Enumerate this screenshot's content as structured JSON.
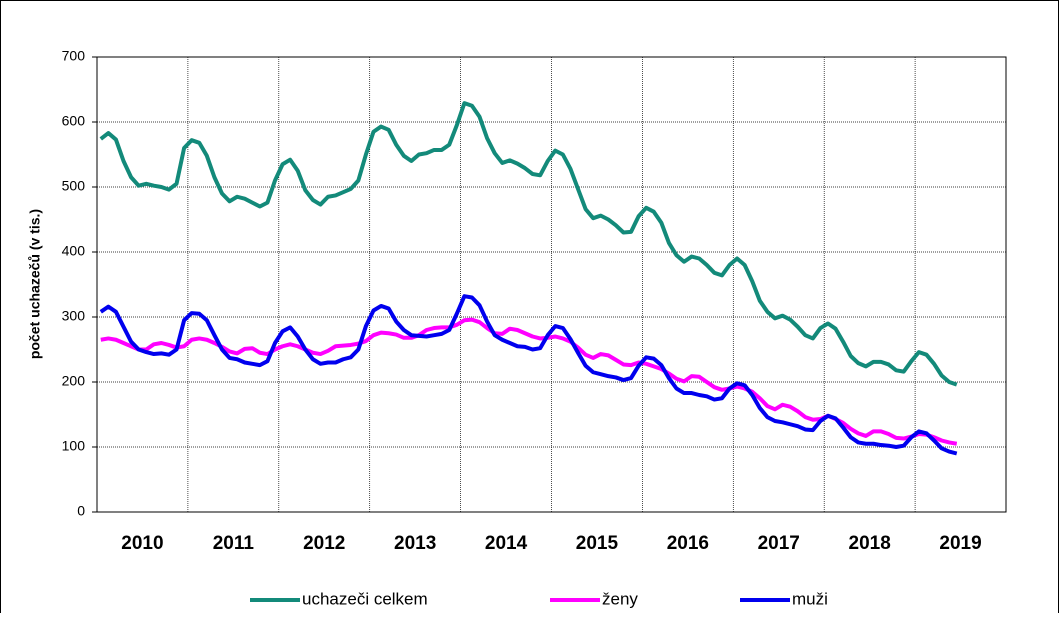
{
  "chart_data": {
    "type": "line",
    "ylabel": "počet uchazečů (v tis.)",
    "categories": [
      null,
      null,
      null,
      null,
      null,
      null,
      "2010",
      null,
      null,
      null,
      null,
      null,
      null,
      null,
      null,
      null,
      null,
      null,
      "2011",
      null,
      null,
      null,
      null,
      null,
      null,
      null,
      null,
      null,
      null,
      null,
      "2012",
      null,
      null,
      null,
      null,
      null,
      null,
      null,
      null,
      null,
      null,
      null,
      "2013",
      null,
      null,
      null,
      null,
      null,
      null,
      null,
      null,
      null,
      null,
      null,
      "2014",
      null,
      null,
      null,
      null,
      null,
      null,
      null,
      null,
      null,
      null,
      null,
      "2015",
      null,
      null,
      null,
      null,
      null,
      null,
      null,
      null,
      null,
      null,
      null,
      "2016",
      null,
      null,
      null,
      null,
      null,
      null,
      null,
      null,
      null,
      null,
      null,
      "2017",
      null,
      null,
      null,
      null,
      null,
      null,
      null,
      null,
      null,
      null,
      null,
      "2018",
      null,
      null,
      null,
      null,
      null,
      null,
      null,
      null,
      null,
      null,
      null,
      "2019",
      null,
      null,
      null,
      null,
      null
    ],
    "series": [
      {
        "name": "uchazeči celkem",
        "color": "#138a7a",
        "values": [
          574,
          583,
          573,
          540,
          515,
          502,
          505,
          502,
          500,
          496,
          505,
          560,
          572,
          568,
          548,
          515,
          490,
          478,
          485,
          482,
          476,
          470,
          476,
          510,
          535,
          542,
          525,
          495,
          480,
          473,
          485,
          487,
          492,
          497,
          510,
          550,
          585,
          593,
          588,
          565,
          548,
          540,
          550,
          552,
          557,
          557,
          565,
          595,
          629,
          625,
          608,
          575,
          552,
          537,
          541,
          536,
          529,
          520,
          518,
          540,
          556,
          550,
          528,
          497,
          466,
          452,
          456,
          450,
          441,
          430,
          431,
          455,
          468,
          462,
          445,
          414,
          395,
          385,
          393,
          390,
          380,
          368,
          364,
          380,
          390,
          380,
          355,
          325,
          308,
          298,
          302,
          296,
          285,
          272,
          267,
          283,
          290,
          282,
          262,
          240,
          229,
          224,
          231,
          231,
          227,
          218,
          216,
          232,
          246,
          242,
          228,
          210,
          200,
          196,
          null,
          null,
          null,
          null,
          null,
          null
        ]
      },
      {
        "name": "ženy",
        "color": "#ff00ff",
        "values": [
          265,
          267,
          265,
          260,
          255,
          250,
          250,
          258,
          260,
          257,
          253,
          255,
          265,
          267,
          265,
          260,
          254,
          247,
          244,
          251,
          252,
          245,
          243,
          250,
          255,
          258,
          255,
          250,
          245,
          243,
          248,
          255,
          256,
          257,
          259,
          263,
          272,
          276,
          275,
          273,
          268,
          268,
          272,
          280,
          283,
          284,
          284,
          288,
          295,
          296,
          292,
          283,
          275,
          274,
          282,
          280,
          275,
          270,
          267,
          268,
          270,
          267,
          262,
          253,
          242,
          237,
          243,
          241,
          234,
          227,
          226,
          230,
          228,
          224,
          220,
          213,
          205,
          201,
          209,
          208,
          200,
          192,
          188,
          190,
          193,
          190,
          185,
          175,
          163,
          158,
          165,
          162,
          155,
          146,
          142,
          143,
          148,
          143,
          137,
          128,
          121,
          117,
          124,
          124,
          120,
          114,
          113,
          116,
          120,
          119,
          115,
          110,
          107,
          105,
          null,
          null,
          null,
          null,
          null,
          null
        ]
      },
      {
        "name": "muži",
        "color": "#0000ee",
        "values": [
          308,
          316,
          308,
          285,
          262,
          250,
          246,
          243,
          244,
          242,
          250,
          295,
          306,
          305,
          295,
          272,
          250,
          237,
          235,
          230,
          228,
          226,
          232,
          260,
          278,
          284,
          270,
          250,
          235,
          228,
          230,
          230,
          235,
          238,
          250,
          286,
          310,
          317,
          313,
          293,
          280,
          272,
          271,
          270,
          272,
          274,
          280,
          305,
          332,
          330,
          318,
          293,
          272,
          265,
          260,
          255,
          254,
          250,
          252,
          272,
          286,
          283,
          266,
          245,
          225,
          215,
          212,
          209,
          207,
          203,
          206,
          225,
          238,
          236,
          226,
          206,
          190,
          183,
          183,
          180,
          178,
          173,
          175,
          190,
          198,
          195,
          180,
          160,
          146,
          140,
          138,
          135,
          132,
          127,
          126,
          140,
          148,
          144,
          130,
          115,
          107,
          105,
          105,
          103,
          102,
          100,
          102,
          115,
          124,
          121,
          110,
          98,
          93,
          90,
          null,
          null,
          null,
          null,
          null,
          null
        ]
      }
    ],
    "ylim": [
      0,
      700
    ],
    "yticks": [
      0,
      100,
      200,
      300,
      400,
      500,
      600,
      700
    ],
    "grid": true
  }
}
